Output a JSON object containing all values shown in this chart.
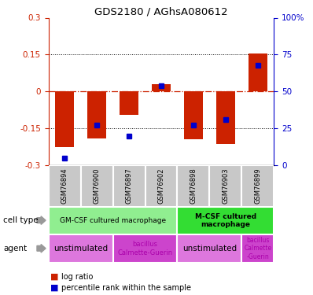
{
  "title": "GDS2180 / AGhsA080612",
  "samples": [
    "GSM76894",
    "GSM76900",
    "GSM76897",
    "GSM76902",
    "GSM76898",
    "GSM76903",
    "GSM76899"
  ],
  "log_ratios": [
    -0.225,
    -0.19,
    -0.095,
    0.03,
    -0.195,
    -0.215,
    0.155
  ],
  "percentile_ranks": [
    5,
    27,
    20,
    54,
    27,
    31,
    68
  ],
  "ylim_left": [
    -0.3,
    0.3
  ],
  "ylim_right": [
    0,
    100
  ],
  "yticks_left": [
    -0.3,
    -0.15,
    0,
    0.15,
    0.3
  ],
  "yticks_right": [
    0,
    25,
    50,
    75,
    100
  ],
  "ytick_labels_left": [
    "-0.3",
    "-0.15",
    "0",
    "0.15",
    "0.3"
  ],
  "ytick_labels_right": [
    "0",
    "25",
    "50",
    "75",
    "100%"
  ],
  "bar_color": "#CC2200",
  "dot_color": "#0000CC",
  "zero_line_color": "#CC2200",
  "dotted_line_color": "#000000",
  "left_axis_color": "#CC2200",
  "right_axis_color": "#0000CC",
  "gray_box_color": "#C8C8C8",
  "gm_cell_color": "#90EE90",
  "mcsf_cell_color": "#33DD33",
  "unstim_color": "#DD77DD",
  "bcg_color": "#CC44CC",
  "legend_bar_color": "#CC2200",
  "legend_dot_color": "#0000CC"
}
